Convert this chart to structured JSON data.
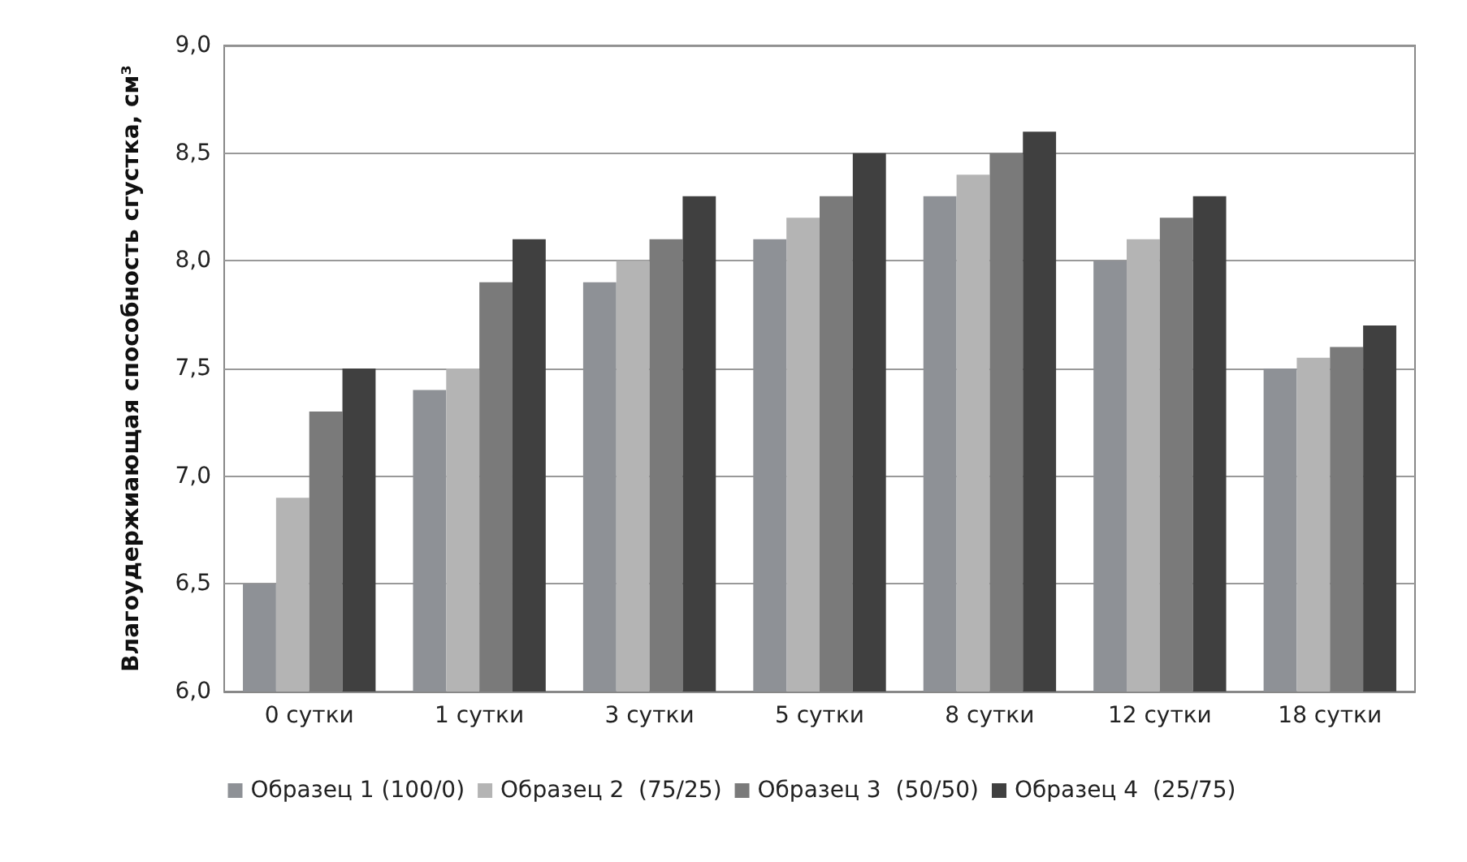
{
  "chart_data": {
    "type": "bar",
    "ylabel": "Влагоудержиающая способность сгустка, см³",
    "categories": [
      "0 сутки",
      "1 сутки",
      "3 сутки",
      "5 сутки",
      "8 сутки",
      "12 сутки",
      "18 сутки"
    ],
    "series": [
      {
        "name": "Образец 1 (100/0)",
        "color": "#8e9196",
        "values": [
          6.5,
          7.4,
          7.9,
          8.1,
          8.3,
          8.0,
          7.5
        ]
      },
      {
        "name": "Образец 2  (75/25)",
        "color": "#b4b4b4",
        "values": [
          6.9,
          7.5,
          8.0,
          8.2,
          8.4,
          8.1,
          7.55
        ]
      },
      {
        "name": "Образец 3  (50/50)",
        "color": "#7a7a7a",
        "values": [
          7.3,
          7.9,
          8.1,
          8.3,
          8.5,
          8.2,
          7.6
        ]
      },
      {
        "name": "Образец 4  (25/75)",
        "color": "#404040",
        "values": [
          7.5,
          8.1,
          8.3,
          8.5,
          8.6,
          8.3,
          7.7
        ]
      }
    ],
    "ylim": [
      6,
      9
    ],
    "yticks": [
      {
        "value": 6,
        "label": "6,0"
      },
      {
        "value": 6.5,
        "label": "6,5"
      },
      {
        "value": 7,
        "label": "7,0"
      },
      {
        "value": 7.5,
        "label": "7,5"
      },
      {
        "value": 8,
        "label": "8,0"
      },
      {
        "value": 8.5,
        "label": "8,5"
      },
      {
        "value": 9,
        "label": "9,0"
      }
    ],
    "grid": "y",
    "legend": "bottom"
  }
}
